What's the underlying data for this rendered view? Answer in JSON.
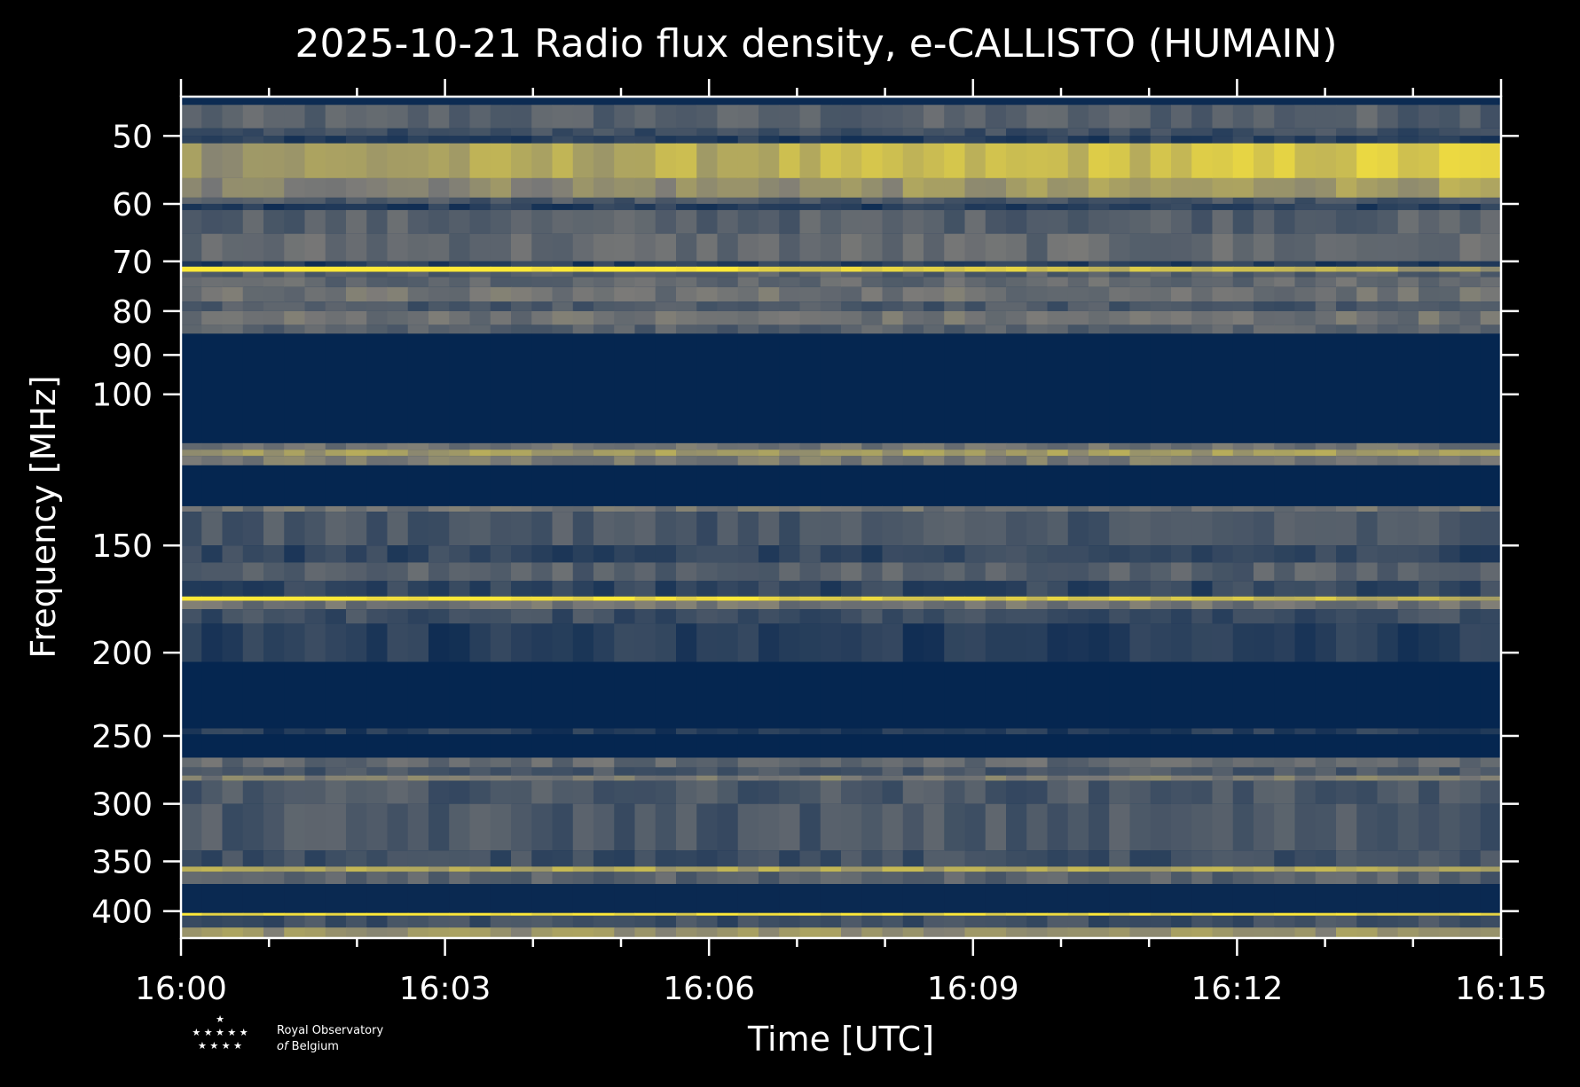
{
  "chart_data": {
    "type": "heatmap",
    "title": "2025-10-21 Radio flux density, e-CALLISTO (HUMAIN)",
    "xlabel": "Time [UTC]",
    "ylabel": "Frequency [MHz]",
    "x_ticks": [
      "16:00",
      "16:03",
      "16:06",
      "16:09",
      "16:12",
      "16:15"
    ],
    "x_range_minutes": [
      0,
      15
    ],
    "y_ticks": [
      50,
      60,
      70,
      80,
      90,
      100,
      150,
      200,
      250,
      300,
      350,
      400
    ],
    "y_range": [
      45,
      430
    ],
    "y_scale": "log",
    "colormap": "cividis",
    "colors": {
      "low": "#00224e",
      "mid": "#7c7b78",
      "high": "#fee838"
    },
    "bands": [
      {
        "f": [
          45,
          46
        ],
        "level": 0.05
      },
      {
        "f": [
          46,
          49
        ],
        "level": 0.35
      },
      {
        "f": [
          49,
          50
        ],
        "level": 0.25
      },
      {
        "f": [
          50,
          51
        ],
        "level": 0.15
      },
      {
        "f": [
          51,
          56
        ],
        "level": 0.75,
        "trend": 0.25
      },
      {
        "f": [
          56,
          59
        ],
        "level": 0.6,
        "trend": 0.15
      },
      {
        "f": [
          59,
          60
        ],
        "level": 0.3
      },
      {
        "f": [
          60,
          61
        ],
        "level": 0.15
      },
      {
        "f": [
          61,
          65
        ],
        "level": 0.35
      },
      {
        "f": [
          65,
          70
        ],
        "level": 0.4
      },
      {
        "f": [
          70,
          71
        ],
        "level": 0.15
      },
      {
        "f": [
          71,
          72
        ],
        "level": 0.9,
        "trend": -0.5
      },
      {
        "f": [
          72,
          73
        ],
        "level": 0.35
      },
      {
        "f": [
          73,
          75
        ],
        "level": 0.4
      },
      {
        "f": [
          75,
          78
        ],
        "level": 0.45
      },
      {
        "f": [
          78,
          80
        ],
        "level": 0.3
      },
      {
        "f": [
          80,
          83
        ],
        "level": 0.45
      },
      {
        "f": [
          83,
          85
        ],
        "level": 0.35
      },
      {
        "f": [
          85,
          114
        ],
        "level": 0.02
      },
      {
        "f": [
          114,
          116
        ],
        "level": 0.45
      },
      {
        "f": [
          116,
          118
        ],
        "level": 0.65
      },
      {
        "f": [
          118,
          121
        ],
        "level": 0.5
      },
      {
        "f": [
          121,
          135
        ],
        "level": 0.02
      },
      {
        "f": [
          135,
          137
        ],
        "level": 0.45
      },
      {
        "f": [
          137,
          150
        ],
        "level": 0.3
      },
      {
        "f": [
          150,
          157
        ],
        "level": 0.2
      },
      {
        "f": [
          157,
          165
        ],
        "level": 0.35
      },
      {
        "f": [
          165,
          172
        ],
        "level": 0.2
      },
      {
        "f": [
          172,
          174
        ],
        "level": 0.9,
        "trend": -0.3
      },
      {
        "f": [
          174,
          178
        ],
        "level": 0.45
      },
      {
        "f": [
          178,
          185
        ],
        "level": 0.25
      },
      {
        "f": [
          185,
          205
        ],
        "level": 0.15
      },
      {
        "f": [
          205,
          245
        ],
        "level": 0.02
      },
      {
        "f": [
          245,
          249
        ],
        "level": 0.15
      },
      {
        "f": [
          249,
          265
        ],
        "level": 0.02
      },
      {
        "f": [
          265,
          272
        ],
        "level": 0.4
      },
      {
        "f": [
          272,
          278
        ],
        "level": 0.3
      },
      {
        "f": [
          278,
          282
        ],
        "level": 0.5
      },
      {
        "f": [
          282,
          300
        ],
        "level": 0.3
      },
      {
        "f": [
          300,
          340
        ],
        "level": 0.3
      },
      {
        "f": [
          340,
          355
        ],
        "level": 0.25
      },
      {
        "f": [
          355,
          360
        ],
        "level": 0.7
      },
      {
        "f": [
          360,
          372
        ],
        "level": 0.35
      },
      {
        "f": [
          372,
          402
        ],
        "level": 0.04
      },
      {
        "f": [
          402,
          405
        ],
        "level": 0.95
      },
      {
        "f": [
          405,
          418
        ],
        "level": 0.25
      },
      {
        "f": [
          418,
          430
        ],
        "level": 0.6
      }
    ]
  },
  "logo": {
    "line1": "Royal Observatory",
    "line2_italic": "of",
    "line2": "Belgium"
  }
}
